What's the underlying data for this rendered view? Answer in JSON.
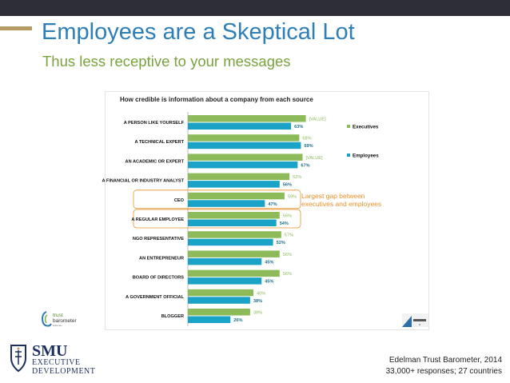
{
  "slide": {
    "title": "Employees are a Skeptical Lot",
    "subtitle": "Thus less receptive to your messages",
    "source_line1": "Edelman Trust Barometer, 2014",
    "source_line2": "33,000+ responses; 27 countries"
  },
  "annotation": {
    "line1": "Largest gap between",
    "line2": "executives and employees"
  },
  "branding": {
    "trust_word": "trust",
    "barometer_word": "barometer",
    "edelman_small": "Edelman",
    "smu_name": "SMU",
    "smu_line1": "EXECUTIVE",
    "smu_line2": "DEVELOPMENT"
  },
  "colors": {
    "executives": "#8dbb5a",
    "employees": "#1aa3c6",
    "exec_label": "#8dbb5a",
    "emp_label": "#1f6f8b",
    "highlight": "#e8922b",
    "title": "#2e7fb8",
    "subtitle": "#7aa23f"
  },
  "chart_data": {
    "type": "bar",
    "orientation": "horizontal",
    "title": "How credible is information about a company from each source",
    "categories": [
      "A PERSON LIKE YOURSELF",
      "A TECHNICAL EXPERT",
      "AN ACADEMIC OR EXPERT",
      "A FINANCIAL OR INDUSTRY ANALYST",
      "CEO",
      "A REGULAR EMPLOYEE",
      "NGO REPRESENTATIVE",
      "AN ENTREPRENEUR",
      "BOARD OF DIRECTORS",
      "A GOVERNMENT OFFICIAL",
      "BLOGGER"
    ],
    "series": [
      {
        "name": "Executives",
        "values": [
          72,
          68,
          70,
          62,
          59,
          56,
          57,
          56,
          56,
          40,
          38
        ],
        "labels": [
          "[VALUE]",
          "68%",
          "[VALUE]",
          "62%",
          "59%",
          "56%",
          "57%",
          "56%",
          "56%",
          "40%",
          "38%"
        ]
      },
      {
        "name": "Employees",
        "values": [
          63,
          69,
          67,
          56,
          47,
          54,
          52,
          45,
          45,
          38,
          26
        ],
        "labels": [
          "63%",
          "69%",
          "67%",
          "56%",
          "47%",
          "54%",
          "52%",
          "45%",
          "45%",
          "38%",
          "26%"
        ]
      }
    ],
    "highlighted": [
      "CEO",
      "A REGULAR EMPLOYEE"
    ],
    "legend_position": "right",
    "grid": false
  }
}
